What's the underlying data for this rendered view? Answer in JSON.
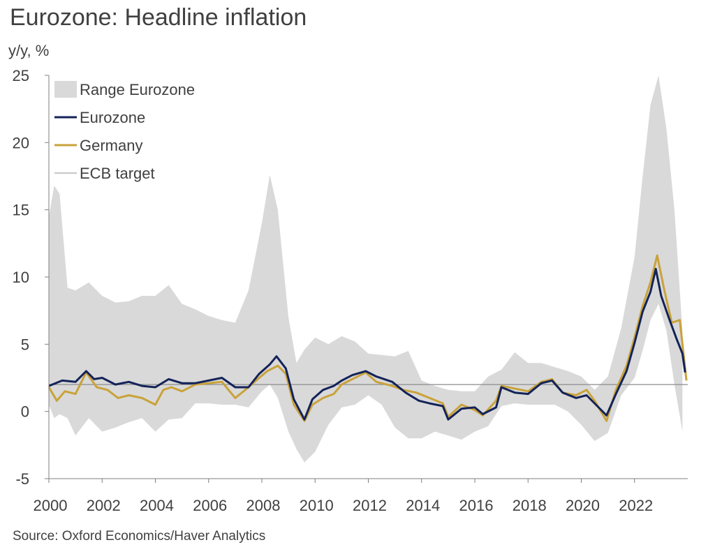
{
  "title": "Eurozone: Headline inflation",
  "source": "Source: Oxford Economics/Haver Analytics",
  "colors": {
    "range": "#d9d9d9",
    "eurozone": "#132359",
    "germany": "#c9a23a",
    "target": "#8c8c8c"
  },
  "chart_data": {
    "type": "line",
    "ylabel": "y/y, %",
    "xlim": [
      2000,
      2024
    ],
    "ylim": [
      -5,
      25
    ],
    "yticks": [
      -5,
      0,
      5,
      10,
      15,
      20,
      25
    ],
    "xticks": [
      2000,
      2002,
      2004,
      2006,
      2008,
      2010,
      2012,
      2014,
      2016,
      2018,
      2020,
      2022
    ],
    "legend": [
      "Range Eurozone",
      "Eurozone",
      "Germany",
      "ECB target"
    ],
    "legend_position": "top-left",
    "target": 2,
    "range": {
      "name": "Range Eurozone",
      "x": [
        2000.0,
        2000.2,
        2000.4,
        2000.7,
        2001.0,
        2001.5,
        2002.0,
        2002.5,
        2003.0,
        2003.5,
        2004.0,
        2004.5,
        2005.0,
        2005.5,
        2006.0,
        2006.5,
        2007.0,
        2007.5,
        2008.0,
        2008.3,
        2008.6,
        2009.0,
        2009.3,
        2009.6,
        2010.0,
        2010.5,
        2011.0,
        2011.5,
        2012.0,
        2012.5,
        2013.0,
        2013.5,
        2014.0,
        2014.5,
        2015.0,
        2015.5,
        2016.0,
        2016.5,
        2017.0,
        2017.5,
        2018.0,
        2018.5,
        2019.0,
        2019.5,
        2020.0,
        2020.5,
        2021.0,
        2021.5,
        2022.0,
        2022.3,
        2022.6,
        2022.9,
        2023.2,
        2023.5,
        2023.8
      ],
      "upper": [
        14.5,
        16.8,
        16.2,
        9.2,
        9.0,
        9.6,
        8.6,
        8.1,
        8.2,
        8.6,
        8.6,
        9.4,
        8.0,
        7.6,
        7.1,
        6.8,
        6.6,
        9.0,
        14.0,
        17.6,
        15.0,
        7.0,
        3.6,
        4.6,
        5.5,
        5.0,
        5.6,
        5.2,
        4.3,
        4.2,
        4.1,
        4.5,
        2.3,
        1.9,
        1.6,
        1.5,
        1.5,
        2.6,
        3.1,
        4.4,
        3.6,
        3.6,
        3.3,
        3.0,
        2.6,
        1.6,
        2.6,
        6.2,
        11.5,
        17.4,
        22.8,
        25.0,
        21.0,
        15.0,
        6.0
      ],
      "lower": [
        0.5,
        -0.5,
        -0.2,
        -0.5,
        -1.8,
        -0.5,
        -1.5,
        -1.2,
        -0.8,
        -0.5,
        -1.5,
        -0.6,
        -0.5,
        0.6,
        0.6,
        0.5,
        0.5,
        0.3,
        1.5,
        2.0,
        1.0,
        -1.5,
        -2.8,
        -3.8,
        -3.0,
        -1.0,
        0.3,
        0.5,
        1.2,
        0.5,
        -1.2,
        -2.0,
        -2.0,
        -1.5,
        -1.8,
        -2.1,
        -1.5,
        -1.1,
        0.4,
        0.6,
        0.5,
        0.5,
        0.5,
        0.0,
        -1.0,
        -2.2,
        -1.6,
        1.2,
        2.5,
        4.5,
        6.8,
        8.0,
        6.0,
        2.0,
        -1.5
      ]
    },
    "series": [
      {
        "name": "Eurozone",
        "x": [
          2000.0,
          2000.5,
          2001.0,
          2001.4,
          2001.7,
          2002.0,
          2002.5,
          2003.0,
          2003.5,
          2004.0,
          2004.5,
          2005.0,
          2005.5,
          2006.0,
          2006.5,
          2007.0,
          2007.5,
          2007.9,
          2008.3,
          2008.55,
          2008.9,
          2009.2,
          2009.6,
          2009.9,
          2010.3,
          2010.7,
          2011.0,
          2011.4,
          2011.9,
          2012.3,
          2012.9,
          2013.4,
          2013.9,
          2014.3,
          2014.8,
          2015.0,
          2015.5,
          2016.0,
          2016.3,
          2016.8,
          2017.0,
          2017.5,
          2018.0,
          2018.5,
          2018.9,
          2019.3,
          2019.8,
          2020.2,
          2020.6,
          2020.95,
          2021.3,
          2021.7,
          2022.0,
          2022.3,
          2022.6,
          2022.8,
          2023.0,
          2023.3,
          2023.6,
          2023.8,
          2023.9
        ],
        "values": [
          1.9,
          2.3,
          2.2,
          3.0,
          2.4,
          2.5,
          2.0,
          2.2,
          1.9,
          1.8,
          2.4,
          2.1,
          2.1,
          2.3,
          2.5,
          1.8,
          1.8,
          2.8,
          3.5,
          4.1,
          3.2,
          0.9,
          -0.6,
          0.9,
          1.6,
          1.9,
          2.3,
          2.7,
          3.0,
          2.6,
          2.2,
          1.4,
          0.8,
          0.6,
          0.4,
          -0.6,
          0.2,
          0.3,
          -0.2,
          0.3,
          1.8,
          1.4,
          1.3,
          2.1,
          2.3,
          1.4,
          1.0,
          1.2,
          0.4,
          -0.3,
          1.3,
          3.0,
          5.1,
          7.4,
          8.9,
          10.6,
          8.6,
          6.9,
          5.3,
          4.3,
          2.9
        ]
      },
      {
        "name": "Germany",
        "x": [
          2000.0,
          2000.3,
          2000.6,
          2001.0,
          2001.4,
          2001.8,
          2002.2,
          2002.6,
          2003.0,
          2003.5,
          2004.0,
          2004.3,
          2004.6,
          2005.0,
          2005.5,
          2006.0,
          2006.5,
          2007.0,
          2007.5,
          2007.9,
          2008.2,
          2008.6,
          2008.9,
          2009.2,
          2009.6,
          2009.9,
          2010.3,
          2010.7,
          2011.0,
          2011.4,
          2011.9,
          2012.3,
          2012.9,
          2013.3,
          2013.8,
          2014.3,
          2014.8,
          2015.0,
          2015.5,
          2016.0,
          2016.3,
          2016.8,
          2017.0,
          2017.5,
          2018.0,
          2018.5,
          2018.9,
          2019.3,
          2019.8,
          2020.2,
          2020.5,
          2020.95,
          2021.3,
          2021.7,
          2022.0,
          2022.3,
          2022.6,
          2022.85,
          2023.1,
          2023.4,
          2023.7,
          2023.95
        ],
        "values": [
          1.8,
          0.8,
          1.5,
          1.3,
          2.9,
          1.8,
          1.6,
          1.0,
          1.2,
          1.0,
          0.5,
          1.6,
          1.8,
          1.5,
          2.0,
          2.1,
          2.2,
          1.0,
          1.8,
          2.5,
          3.0,
          3.4,
          2.8,
          0.5,
          -0.7,
          0.5,
          1.0,
          1.3,
          2.0,
          2.4,
          2.9,
          2.2,
          1.9,
          1.6,
          1.4,
          1.0,
          0.6,
          -0.4,
          0.5,
          0.1,
          -0.3,
          0.8,
          1.9,
          1.7,
          1.5,
          2.2,
          2.4,
          1.4,
          1.2,
          1.6,
          0.8,
          -0.7,
          1.6,
          3.4,
          5.5,
          7.8,
          9.6,
          11.6,
          9.2,
          6.6,
          6.8,
          2.3
        ]
      }
    ]
  }
}
